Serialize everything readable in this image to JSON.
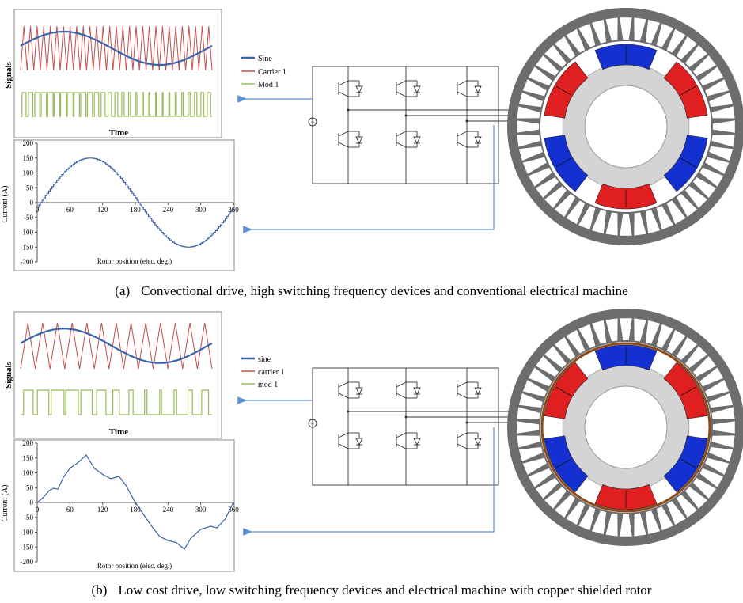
{
  "panels": [
    {
      "id": "a",
      "caption_label": "(a)",
      "caption_text": "Convectional drive, high switching frequency devices and conventional electrical machine",
      "signals_chart": {
        "ylabel": "Signals",
        "xlabel": "Time",
        "legend": [
          "Sine",
          "Carrier 1",
          "Mod 1"
        ],
        "colors": {
          "sine": "#3a64a8",
          "carrier": "#c0504d",
          "mod": "#9bbb59"
        },
        "carrier_cycles": 29,
        "sine_cycles": 1
      },
      "current_chart": {
        "ylabel": "Current (A)",
        "xlabel": "Rotor position (elec. deg.)",
        "xticks": [
          "0",
          "60",
          "120",
          "180",
          "240",
          "300",
          "360"
        ],
        "yticks": [
          "200",
          "150",
          "100",
          "50",
          "0",
          "-50",
          "-100",
          "-150",
          "-200"
        ]
      }
    },
    {
      "id": "b",
      "caption_label": "(b)",
      "caption_text": "Low cost drive, low switching frequency devices and electrical machine with copper shielded rotor",
      "signals_chart": {
        "ylabel": "Signals",
        "xlabel": "Time",
        "legend": [
          "sine",
          "carrier 1",
          "mod 1"
        ],
        "colors": {
          "sine": "#3a64a8",
          "carrier": "#c0504d",
          "mod": "#9bbb59"
        },
        "carrier_cycles": 13,
        "sine_cycles": 1
      },
      "current_chart": {
        "ylabel": "Current (A)",
        "xlabel": "Rotor position (elec. deg.)",
        "xticks": [
          "0",
          "60",
          "120",
          "180",
          "240",
          "300",
          "360"
        ],
        "yticks": [
          "200",
          "150",
          "100",
          "50",
          "0",
          "-50",
          "-100",
          "-150",
          "-200"
        ]
      }
    }
  ],
  "motor_colors": {
    "stator": "#6d6d6d",
    "rotor": "#d4d4d4",
    "magnet_n": "#e02020",
    "magnet_s": "#1530d0",
    "copper": "#8b4a1c",
    "arrow": "#5b8fd6"
  }
}
